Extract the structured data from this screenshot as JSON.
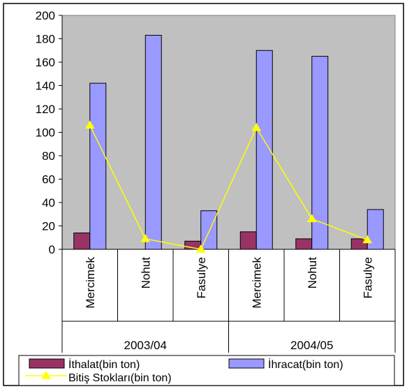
{
  "chart_data": {
    "type": "bar",
    "groups": [
      {
        "label": "2003/04",
        "categories": [
          "Mercimek",
          "Nohut",
          "Fasulye"
        ]
      },
      {
        "label": "2004/05",
        "categories": [
          "Mercimek",
          "Nohut",
          "Fasulye"
        ]
      }
    ],
    "categories": [
      "Mercimek",
      "Nohut",
      "Fasulye",
      "Mercimek",
      "Nohut",
      "Fasulye"
    ],
    "series": [
      {
        "name": "İthalat(bin ton)",
        "kind": "bar",
        "color": "#993366",
        "values": [
          14,
          0,
          7,
          15,
          9,
          9
        ]
      },
      {
        "name": "İhracat(bin ton)",
        "kind": "bar",
        "color": "#9999ff",
        "values": [
          142,
          183,
          33,
          170,
          165,
          34
        ]
      },
      {
        "name": "Bitiş Stokları(bin ton)",
        "kind": "line",
        "color": "#ffff00",
        "marker": "triangle",
        "values": [
          106,
          9,
          0,
          104,
          26,
          8
        ]
      }
    ],
    "ylim": [
      0,
      200
    ],
    "yticks": [
      0,
      20,
      40,
      60,
      80,
      100,
      120,
      140,
      160,
      180,
      200
    ],
    "plot_background": "#c0c0c0",
    "grid": false,
    "legend_position": "bottom"
  }
}
